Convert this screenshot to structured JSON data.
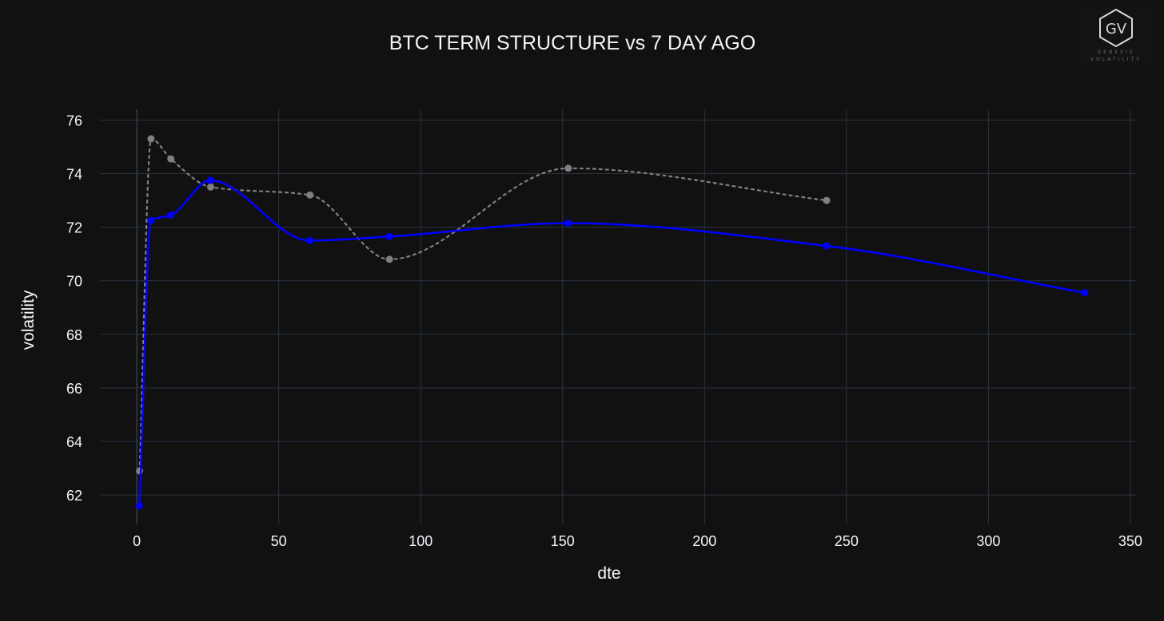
{
  "logo": {
    "monogram": "GV",
    "line1": "GENESIS",
    "line2": "VOLATILITY"
  },
  "chart_data": {
    "type": "line",
    "title": "BTC TERM STRUCTURE vs 7 DAY AGO",
    "xlabel": "dte",
    "ylabel": "volatility",
    "xlim": [
      -13,
      352
    ],
    "ylim": [
      60.9,
      76.4
    ],
    "xticks": [
      0,
      50,
      100,
      150,
      200,
      250,
      300,
      350
    ],
    "yticks": [
      62,
      64,
      66,
      68,
      70,
      72,
      74,
      76
    ],
    "grid": true,
    "legend": "none",
    "colors": {
      "background": "#111111",
      "grid": "#283442",
      "zero_line": "#283442",
      "text": "#f2f5fa",
      "current": "#0000ff",
      "prior": "#808080"
    },
    "series": [
      {
        "color": "#0000ff",
        "line_style": "solid",
        "x": [
          1,
          5,
          12,
          26,
          61,
          89,
          152,
          243,
          334
        ],
        "y": [
          61.6,
          72.25,
          72.45,
          73.75,
          71.5,
          71.65,
          72.15,
          71.3,
          69.55
        ]
      },
      {
        "color": "#808080",
        "line_style": "dotted",
        "x": [
          1,
          5,
          12,
          26,
          61,
          89,
          152,
          243
        ],
        "y": [
          62.9,
          75.3,
          74.55,
          73.5,
          73.2,
          70.8,
          74.2,
          73.0
        ]
      }
    ]
  }
}
